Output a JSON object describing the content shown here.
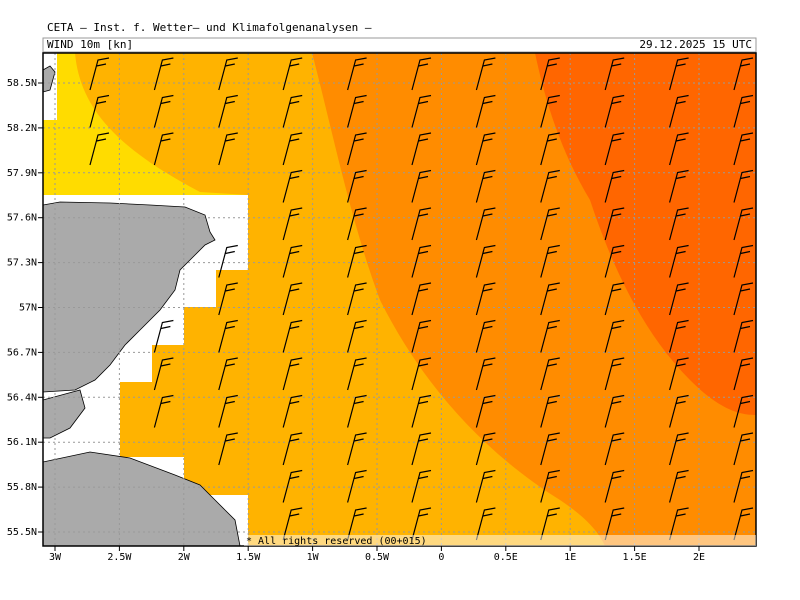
{
  "header": {
    "title": "CETA – Inst. f. Wetter– und Klimafolgenanalysen –",
    "field": "WIND 10m [kn]",
    "valid_time": "29.12.2025 15 UTC"
  },
  "map": {
    "lat_labels": [
      "58.5N",
      "58.2N",
      "57.9N",
      "57.6N",
      "57.3N",
      "57N",
      "56.7N",
      "56.4N",
      "56.1N",
      "55.8N",
      "55.5N"
    ],
    "lon_labels": [
      "3W",
      "2.5W",
      "2W",
      "1.5W",
      "1W",
      "0.5W",
      "0",
      "0.5E",
      "1E",
      "1.5E",
      "2E"
    ],
    "copyright": "* All rights reserved (00+015)"
  }
}
